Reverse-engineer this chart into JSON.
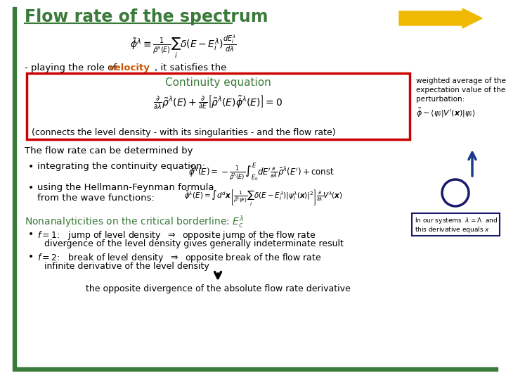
{
  "title": "Flow rate of the spectrum",
  "title_color": "#3a7a3a",
  "bg_color": "#ffffff",
  "left_bar_color": "#3a7a3a",
  "arrow_color": "#f0b800",
  "arrow2_color": "#1a3a8a",
  "red_box_color": "#cc0000",
  "green_text_color": "#3a7a3a",
  "orange_text_color": "#cc5500",
  "dark_blue_color": "#1a1a6a",
  "formula_top": "$\\tilde{\\phi}^\\lambda \\equiv \\frac{1}{\\tilde{\\rho}^\\lambda(E)} \\sum_i \\delta(E - E_i^\\lambda) \\frac{dE_i^\\lambda}{d\\lambda}$",
  "continuity_title": "Continuity equation",
  "continuity_eq": "$\\frac{\\partial}{\\partial\\lambda}\\tilde{\\rho}^\\lambda(E) + \\frac{\\partial}{\\partial E}\\left[\\tilde{\\rho}^\\lambda(E)\\tilde{\\phi}^\\lambda(E)\\right] = 0$",
  "connects_text": "(connects the level density - with its singularities - and the flow rate)",
  "playing_text1": "- playing the role of ",
  "playing_bold": "velocity",
  "playing_text2": ", it satisfies the",
  "flow_determined": "The flow rate can be determined by",
  "bullet1_text": "integrating the continuity equation:",
  "bullet1_eq": "$\\tilde{\\phi}^\\lambda(E) = -\\frac{1}{\\tilde{\\rho}^\\lambda(E)} \\int_{E_0}^{E} dE^{\\prime} \\frac{\\partial}{\\partial\\lambda}\\tilde{\\rho}^\\lambda(E^{\\prime}) + \\mathrm{const}$",
  "bullet2_text1": "using the Hellmann-Feynman formula",
  "bullet2_text2": "from the wave functions:",
  "bullet2_eq": "$\\tilde{\\phi}^\\lambda(E) = \\int d^d\\boldsymbol{x}\\left[\\frac{1}{\\tilde{\\rho}^\\lambda(E)}\\sum_i \\delta(E-E_i^\\lambda)|\\psi_i^\\lambda(\\boldsymbol{x})|^2\\right]\\frac{\\partial}{\\partial\\lambda}V^\\lambda(\\boldsymbol{x})$",
  "nonana_text": "Nonanalyticities on the critical borderline: $E_c^\\lambda$",
  "f1_text": "$f = 1$:   jump of level density  $\\Rightarrow$  opposite jump of the flow rate",
  "f1_text2": "divergence of the level density gives generally indeterminate result",
  "f2_text": "$f = 2$:   break of level density  $\\Rightarrow$  opposite break of the flow rate",
  "f2_text2": "infinite derivative of the level density",
  "final_text": "the opposite divergence of the absolute flow rate derivative",
  "side_note1": "weighted average of the",
  "side_note2": "expectation value of the",
  "side_note3": "perturbation:",
  "side_note_eq": "$\\tilde{\\phi} \\sim \\langle \\psi_i | V^{\\prime}(\\boldsymbol{x}) | \\psi_i \\rangle$",
  "box_note1": "In our systems  $\\lambda = \\Lambda$  and",
  "box_note2": "this derivative equals $x$"
}
